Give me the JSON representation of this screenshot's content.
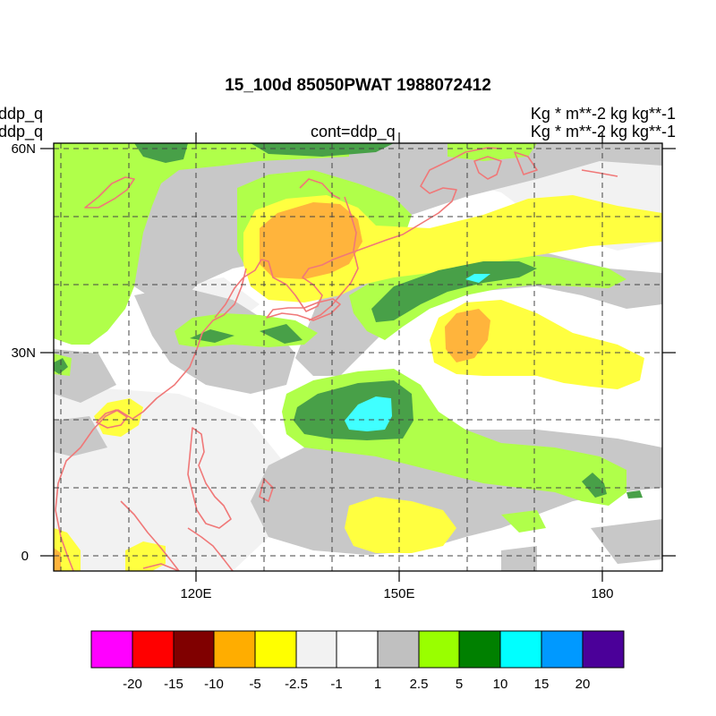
{
  "header": {
    "title": "15_100d 85050PWAT  1988072412",
    "left_line1": "ddp_q",
    "left_line2": "ddp_q",
    "center": "cont=ddp_q",
    "right_line1": "Kg  * m**-2 kg kg**-1",
    "right_line2": "Kg  * m**-2 kg kg**-1"
  },
  "axes": {
    "lat_labels": [
      {
        "text": "60N",
        "lat": 60
      },
      {
        "text": "30N",
        "lat": 30
      },
      {
        "text": "0",
        "lat": 0
      }
    ],
    "lon_labels": [
      {
        "text": "120E",
        "lon": 120
      },
      {
        "text": "150E",
        "lon": 150
      },
      {
        "text": "180",
        "lon": 180
      }
    ],
    "lon_range": [
      98,
      185
    ],
    "lat_range": [
      -2,
      60
    ],
    "grid": "dashed, every 10 degrees"
  },
  "colorbar": {
    "colors": [
      "#ff00ff",
      "#ff0000",
      "#800000",
      "#ffad00",
      "#ffff00",
      "#f2f2f2",
      "#ffffff",
      "#c0c0c0",
      "#99ff00",
      "#008000",
      "#00ffff",
      "#0099ff",
      "#4b0099"
    ],
    "labels": [
      "-20",
      "-15",
      "-10",
      "-5",
      "-2.5",
      "-1",
      "1",
      "2.5",
      "5",
      "10",
      "15",
      "20"
    ]
  },
  "colors": {
    "coastline": "#f07878",
    "gray": "#c8c8c8",
    "lightgray": "#f2f2f2",
    "lightgreen": "#b0ff4a",
    "darkgreen": "#48a048",
    "yellow": "#ffff40",
    "orange": "#ffb43c",
    "cyan": "#40ffff"
  }
}
